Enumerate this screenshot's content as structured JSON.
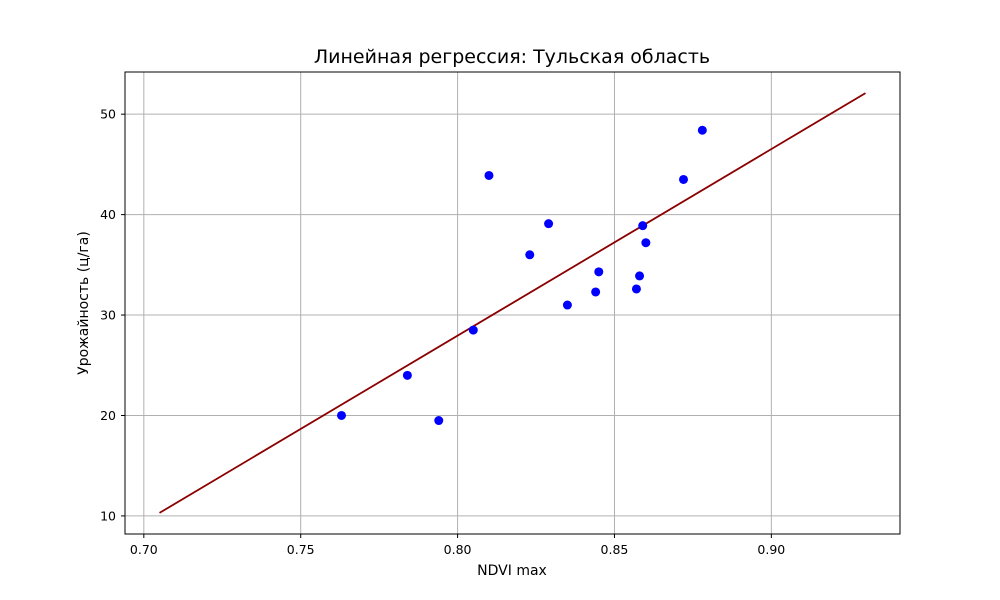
{
  "chart_data": {
    "type": "scatter",
    "title": "Линейная регрессия: Тульская область",
    "xlabel": "NDVI max",
    "ylabel": "Урожайность (ц/га)",
    "xlim": [
      0.694,
      0.941
    ],
    "ylim": [
      8.2,
      54.2
    ],
    "xticks": [
      0.7,
      0.75,
      0.8,
      0.85,
      0.9
    ],
    "xtick_labels": [
      "0.70",
      "0.75",
      "0.80",
      "0.85",
      "0.90"
    ],
    "yticks": [
      10,
      20,
      30,
      40,
      50
    ],
    "ytick_labels": [
      "10",
      "20",
      "30",
      "40",
      "50"
    ],
    "grid": true,
    "series": [
      {
        "kind": "scatter",
        "color": "#0000ff",
        "points": [
          {
            "x": 0.763,
            "y": 20.0
          },
          {
            "x": 0.784,
            "y": 24.0
          },
          {
            "x": 0.794,
            "y": 19.5
          },
          {
            "x": 0.805,
            "y": 28.5
          },
          {
            "x": 0.81,
            "y": 43.9
          },
          {
            "x": 0.823,
            "y": 36.0
          },
          {
            "x": 0.829,
            "y": 39.1
          },
          {
            "x": 0.835,
            "y": 31.0
          },
          {
            "x": 0.844,
            "y": 32.3
          },
          {
            "x": 0.845,
            "y": 34.3
          },
          {
            "x": 0.857,
            "y": 32.6
          },
          {
            "x": 0.858,
            "y": 33.9
          },
          {
            "x": 0.859,
            "y": 38.9
          },
          {
            "x": 0.86,
            "y": 37.2
          },
          {
            "x": 0.872,
            "y": 43.5
          },
          {
            "x": 0.878,
            "y": 48.4
          }
        ]
      },
      {
        "kind": "line",
        "color": "#8b0000",
        "points": [
          {
            "x": 0.705,
            "y": 10.3
          },
          {
            "x": 0.93,
            "y": 52.1
          }
        ]
      }
    ]
  }
}
